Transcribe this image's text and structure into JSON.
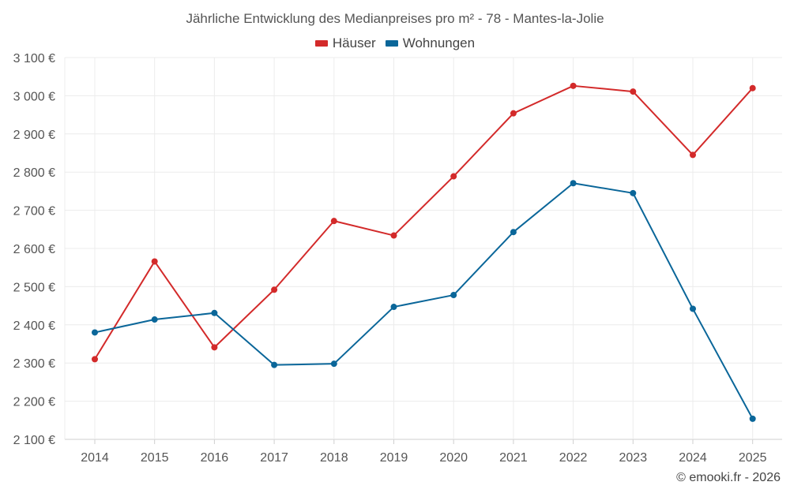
{
  "chart_data": {
    "type": "line",
    "title": "Jährliche Entwicklung des Medianpreises pro m² - 78 - Mantes-la-Jolie",
    "xlabel": "",
    "ylabel": "",
    "categories": [
      "2014",
      "2015",
      "2016",
      "2017",
      "2018",
      "2019",
      "2020",
      "2021",
      "2022",
      "2023",
      "2024",
      "2025"
    ],
    "ylim": [
      2100,
      3100
    ],
    "yticks": [
      2100,
      2200,
      2300,
      2400,
      2500,
      2600,
      2700,
      2800,
      2900,
      3000,
      3100
    ],
    "ytick_labels": [
      "2 100 €",
      "2 200 €",
      "2 300 €",
      "2 400 €",
      "2 500 €",
      "2 600 €",
      "2 700 €",
      "2 800 €",
      "2 900 €",
      "3 000 €",
      "3 100 €"
    ],
    "grid": true,
    "legend_position": "top-center",
    "series": [
      {
        "name": "Häuser",
        "color": "#d32a2a",
        "values": [
          2310,
          2566,
          2341,
          2492,
          2672,
          2634,
          2789,
          2954,
          3026,
          3011,
          2845,
          3020
        ]
      },
      {
        "name": "Wohnungen",
        "color": "#0a6699",
        "values": [
          2380,
          2414,
          2431,
          2295,
          2298,
          2447,
          2478,
          2643,
          2771,
          2745,
          2442,
          2154
        ]
      }
    ]
  },
  "footer": {
    "copyright": "© emooki.fr - 2026"
  }
}
